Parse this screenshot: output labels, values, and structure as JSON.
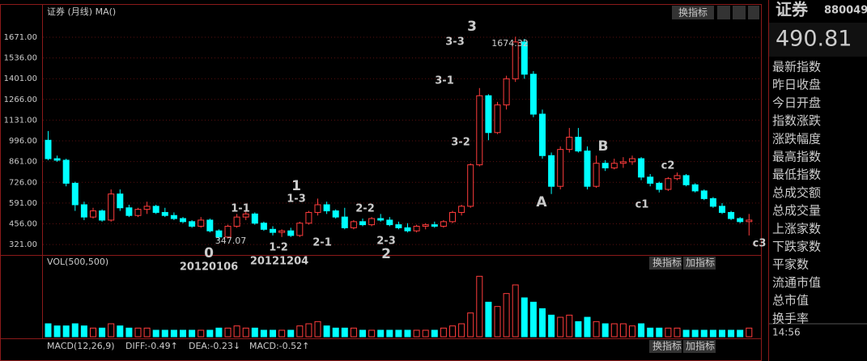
{
  "header": {
    "title": "证券 (月线) MA()",
    "button": "换指标"
  },
  "side": {
    "name": "证券",
    "code": "880049",
    "price": "490.81",
    "labels": [
      "最新指数",
      "昨日收盘",
      "今日开盘",
      "指数涨跌",
      "涨跌幅度",
      "最高指数",
      "最低指数",
      "总成交额",
      "总成交量",
      "上涨家数",
      "下跌家数",
      "平家数",
      "流通市值",
      "总市值",
      "换手率"
    ],
    "time": "14:56"
  },
  "volume_panel": {
    "title": "VOL(500,500)",
    "buttons": [
      "换指标",
      "加指标"
    ]
  },
  "macd_panel": {
    "title": "MACD(12,26,9)",
    "diff": "DIFF:-0.49↑",
    "dea": "DEA:-0.23↓",
    "macd": "MACD:-0.52↑",
    "button": "换指标",
    "button2": "加指标"
  },
  "chart_data": {
    "type": "candlestick",
    "ylim": [
      253,
      1850
    ],
    "yticks": [
      {
        "value": 1671,
        "label": "1671.00"
      },
      {
        "value": 1536,
        "label": "1536.00"
      },
      {
        "value": 1401,
        "label": "1401.00"
      },
      {
        "value": 1266,
        "label": "1266.00"
      },
      {
        "value": 1131,
        "label": "1131.00"
      },
      {
        "value": 996,
        "label": "996.00"
      },
      {
        "value": 861,
        "label": "861.00"
      },
      {
        "value": 726,
        "label": "726.00"
      },
      {
        "value": 591,
        "label": "591.00"
      },
      {
        "value": 456,
        "label": "456.00"
      },
      {
        "value": 321,
        "label": "321.00"
      }
    ],
    "up_color": "#ff3c3c",
    "down_color": "#00ffff",
    "grid": true,
    "ohlc": [
      [
        1000,
        1060,
        870,
        880
      ],
      [
        880,
        900,
        860,
        870
      ],
      [
        870,
        880,
        700,
        720
      ],
      [
        720,
        730,
        540,
        580
      ],
      [
        580,
        600,
        480,
        500
      ],
      [
        500,
        560,
        490,
        540
      ],
      [
        540,
        550,
        470,
        480
      ],
      [
        480,
        680,
        470,
        650
      ],
      [
        650,
        680,
        540,
        560
      ],
      [
        560,
        580,
        500,
        510
      ],
      [
        510,
        560,
        500,
        550
      ],
      [
        550,
        600,
        520,
        570
      ],
      [
        570,
        580,
        520,
        530
      ],
      [
        530,
        560,
        500,
        510
      ],
      [
        510,
        530,
        480,
        490
      ],
      [
        490,
        500,
        460,
        470
      ],
      [
        470,
        480,
        430,
        440
      ],
      [
        440,
        500,
        430,
        480
      ],
      [
        480,
        490,
        400,
        410
      ],
      [
        410,
        420,
        347.07,
        370
      ],
      [
        370,
        450,
        360,
        440
      ],
      [
        440,
        520,
        430,
        500
      ],
      [
        500,
        540,
        480,
        520
      ],
      [
        520,
        530,
        450,
        460
      ],
      [
        460,
        470,
        410,
        420
      ],
      [
        420,
        440,
        380,
        400
      ],
      [
        400,
        420,
        370,
        410
      ],
      [
        410,
        430,
        370,
        380
      ],
      [
        380,
        470,
        370,
        460
      ],
      [
        460,
        540,
        450,
        530
      ],
      [
        530,
        620,
        510,
        580
      ],
      [
        580,
        600,
        520,
        540
      ],
      [
        540,
        550,
        490,
        500
      ],
      [
        500,
        560,
        420,
        430
      ],
      [
        430,
        480,
        420,
        470
      ],
      [
        470,
        490,
        440,
        450
      ],
      [
        450,
        500,
        440,
        490
      ],
      [
        490,
        520,
        470,
        480
      ],
      [
        480,
        500,
        440,
        450
      ],
      [
        450,
        470,
        420,
        430
      ],
      [
        430,
        460,
        400,
        410
      ],
      [
        410,
        450,
        400,
        440
      ],
      [
        440,
        460,
        420,
        450
      ],
      [
        450,
        470,
        430,
        440
      ],
      [
        440,
        480,
        430,
        470
      ],
      [
        470,
        540,
        460,
        530
      ],
      [
        530,
        580,
        510,
        570
      ],
      [
        570,
        850,
        560,
        840
      ],
      [
        840,
        1340,
        830,
        1290
      ],
      [
        1290,
        1300,
        1000,
        1050
      ],
      [
        1050,
        1250,
        1040,
        1230
      ],
      [
        1230,
        1420,
        1200,
        1400
      ],
      [
        1400,
        1674.32,
        1380,
        1640
      ],
      [
        1640,
        1660,
        1400,
        1430
      ],
      [
        1430,
        1450,
        1150,
        1170
      ],
      [
        1170,
        1200,
        880,
        900
      ],
      [
        900,
        920,
        650,
        700
      ],
      [
        700,
        960,
        680,
        940
      ],
      [
        940,
        1080,
        920,
        1020
      ],
      [
        1020,
        1080,
        920,
        930
      ],
      [
        930,
        960,
        680,
        700
      ],
      [
        700,
        900,
        690,
        850
      ],
      [
        850,
        870,
        800,
        820
      ],
      [
        820,
        880,
        810,
        850
      ],
      [
        850,
        890,
        820,
        860
      ],
      [
        860,
        900,
        840,
        880
      ],
      [
        880,
        890,
        740,
        760
      ],
      [
        760,
        780,
        700,
        720
      ],
      [
        720,
        730,
        660,
        680
      ],
      [
        680,
        760,
        670,
        750
      ],
      [
        750,
        790,
        740,
        770
      ],
      [
        770,
        780,
        700,
        710
      ],
      [
        710,
        720,
        660,
        670
      ],
      [
        670,
        680,
        610,
        620
      ],
      [
        620,
        630,
        560,
        570
      ],
      [
        570,
        590,
        520,
        530
      ],
      [
        530,
        540,
        480,
        490
      ],
      [
        490,
        500,
        460,
        470
      ],
      [
        470,
        520,
        380,
        480
      ]
    ],
    "volume": [
      6,
      5,
      5,
      6,
      5,
      4,
      4,
      6,
      5,
      4,
      4,
      4,
      3,
      3,
      3,
      3,
      3,
      3,
      3,
      4,
      4,
      5,
      4,
      4,
      3,
      3,
      3,
      3,
      5,
      6,
      7,
      5,
      4,
      4,
      4,
      3,
      3,
      3,
      3,
      3,
      3,
      3,
      3,
      3,
      4,
      5,
      6,
      11,
      28,
      16,
      14,
      20,
      24,
      18,
      16,
      13,
      10,
      9,
      10,
      7,
      9,
      7,
      6,
      6,
      6,
      5,
      6,
      4,
      4,
      4,
      4,
      3,
      3,
      3,
      3,
      3,
      3,
      3,
      4
    ],
    "vol_ylim": [
      0,
      30
    ],
    "annotations": [
      "0",
      "20120106",
      "347.07",
      "1-1",
      "1-2",
      "20121204",
      "1",
      "1-3",
      "2-1",
      "2-2",
      "2-3",
      "2",
      "3-1",
      "3-2",
      "3-3",
      "3",
      "1674.32",
      "A",
      "B",
      "c1",
      "c2",
      "c3"
    ]
  }
}
